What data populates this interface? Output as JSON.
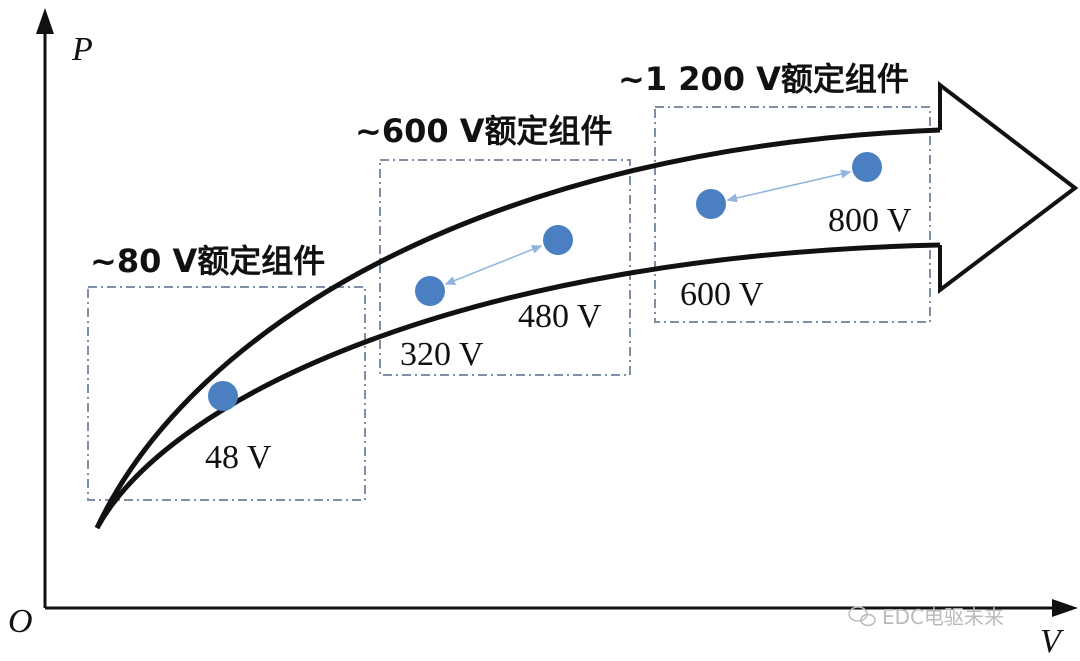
{
  "axes": {
    "y_label": "P",
    "x_label": "V",
    "origin": "O"
  },
  "groups": [
    {
      "label": "~80 V额定组件",
      "points": [
        {
          "label": "48 V"
        }
      ]
    },
    {
      "label": "~600 V额定组件",
      "points": [
        {
          "label": "320 V"
        },
        {
          "label": "480 V"
        }
      ]
    },
    {
      "label": "~1 200 V额定组件",
      "points": [
        {
          "label": "600 V"
        },
        {
          "label": "800 V"
        }
      ]
    }
  ],
  "watermark": "EDC电驱未来"
}
